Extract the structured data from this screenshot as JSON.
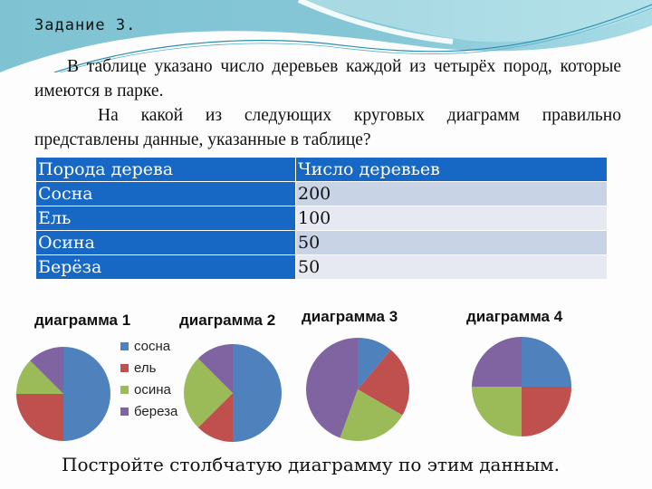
{
  "task": {
    "title": "Задание 3.",
    "paragraph1": "В таблице указано число деревьев каждой из четырёх пород, которые имеются в парке.",
    "paragraph2": "На какой из следующих круговых диаграмм правильно представлены данные, указанные в таблице?",
    "bottom_text": "Постройте столбчатую диаграмму по этим данным."
  },
  "table": {
    "headers": [
      "Порода дерева",
      "Число деревьев"
    ],
    "rows": [
      [
        "Сосна",
        "200"
      ],
      [
        "Ель",
        "100"
      ],
      [
        "Осина",
        "50"
      ],
      [
        "Берёза",
        "50"
      ]
    ]
  },
  "legend": {
    "items": [
      {
        "label": "сосна",
        "color": "#4f81bd"
      },
      {
        "label": "ель",
        "color": "#c0504d"
      },
      {
        "label": "осина",
        "color": "#9bbb59"
      },
      {
        "label": "береза",
        "color": "#8064a2"
      }
    ]
  },
  "chart_data": [
    {
      "type": "pie",
      "title": "диаграмма 1",
      "categories": [
        "сосна",
        "ель",
        "осина",
        "береза"
      ],
      "values": [
        50,
        25,
        12.5,
        12.5
      ]
    },
    {
      "type": "pie",
      "title": "диаграмма 2",
      "categories": [
        "сосна",
        "ель",
        "осина",
        "береза"
      ],
      "values": [
        50,
        12.5,
        25,
        12.5
      ]
    },
    {
      "type": "pie",
      "title": "диаграмма 3",
      "categories": [
        "сосна",
        "ель",
        "осина",
        "береза"
      ],
      "values": [
        11.1,
        22.2,
        22.2,
        44.4
      ]
    },
    {
      "type": "pie",
      "title": "диаграмма 4",
      "categories": [
        "сосна",
        "ель",
        "осина",
        "береза"
      ],
      "values": [
        25,
        25,
        25,
        25
      ]
    }
  ]
}
